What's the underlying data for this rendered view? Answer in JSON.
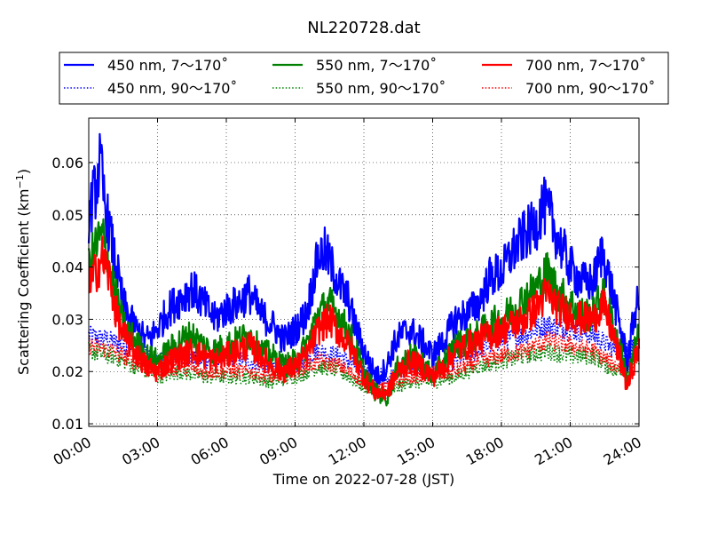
{
  "chart_data": {
    "type": "line",
    "title": "NL220728.dat",
    "xlabel": "Time on 2022-07-28 (JST)",
    "ylabel_main": "Scattering Coefficient (km",
    "ylabel_sup": "−1",
    "ylabel_close": ")",
    "x_unit": "hour",
    "xlim": [
      0,
      24
    ],
    "ylim": [
      0.0095,
      0.0685
    ],
    "xticks": [
      0,
      3,
      6,
      9,
      12,
      15,
      18,
      21,
      24
    ],
    "xtick_labels": [
      "00:00",
      "03:00",
      "06:00",
      "09:00",
      "12:00",
      "15:00",
      "18:00",
      "21:00",
      "24:00"
    ],
    "yticks": [
      0.01,
      0.02,
      0.03,
      0.04,
      0.05,
      0.06
    ],
    "ytick_labels": [
      "0.01",
      "0.02",
      "0.03",
      "0.04",
      "0.05",
      "0.06"
    ],
    "grid": true,
    "legend_position": "top (above plot)",
    "series": [
      {
        "name": "450 nm, 7～170˚",
        "color": "#0000ff",
        "style": "solid",
        "points": [
          [
            0,
            0.05
          ],
          [
            0.3,
            0.055
          ],
          [
            0.5,
            0.06
          ],
          [
            0.7,
            0.052
          ],
          [
            0.9,
            0.047
          ],
          [
            1.2,
            0.04
          ],
          [
            1.5,
            0.033
          ],
          [
            1.8,
            0.03
          ],
          [
            2.1,
            0.028
          ],
          [
            2.5,
            0.026
          ],
          [
            2.8,
            0.027
          ],
          [
            3.1,
            0.029
          ],
          [
            3.5,
            0.032
          ],
          [
            4.0,
            0.034
          ],
          [
            4.5,
            0.036
          ],
          [
            5.0,
            0.033
          ],
          [
            5.5,
            0.03
          ],
          [
            6.0,
            0.032
          ],
          [
            6.5,
            0.033
          ],
          [
            7.0,
            0.035
          ],
          [
            7.5,
            0.031
          ],
          [
            8.0,
            0.029
          ],
          [
            8.5,
            0.026
          ],
          [
            9.0,
            0.028
          ],
          [
            9.5,
            0.031
          ],
          [
            10.0,
            0.042
          ],
          [
            10.3,
            0.043
          ],
          [
            10.7,
            0.039
          ],
          [
            11.0,
            0.036
          ],
          [
            11.3,
            0.034
          ],
          [
            11.6,
            0.029
          ],
          [
            12.0,
            0.024
          ],
          [
            12.3,
            0.021
          ],
          [
            12.6,
            0.019
          ],
          [
            13.0,
            0.021
          ],
          [
            13.3,
            0.025
          ],
          [
            13.6,
            0.027
          ],
          [
            14.0,
            0.028
          ],
          [
            14.5,
            0.026
          ],
          [
            15.0,
            0.023
          ],
          [
            15.5,
            0.026
          ],
          [
            16.0,
            0.03
          ],
          [
            16.5,
            0.031
          ],
          [
            17.0,
            0.033
          ],
          [
            17.5,
            0.038
          ],
          [
            18.0,
            0.039
          ],
          [
            18.5,
            0.043
          ],
          [
            19.0,
            0.046
          ],
          [
            19.5,
            0.048
          ],
          [
            19.8,
            0.052
          ],
          [
            20.2,
            0.049
          ],
          [
            20.5,
            0.045
          ],
          [
            21.0,
            0.04
          ],
          [
            21.5,
            0.037
          ],
          [
            22.0,
            0.037
          ],
          [
            22.4,
            0.043
          ],
          [
            22.8,
            0.036
          ],
          [
            23.2,
            0.028
          ],
          [
            23.5,
            0.022
          ],
          [
            23.8,
            0.031
          ],
          [
            24,
            0.034
          ]
        ]
      },
      {
        "name": "450 nm, 90～170˚",
        "color": "#0000ff",
        "style": "dotted",
        "points": [
          [
            0,
            0.027
          ],
          [
            1,
            0.026
          ],
          [
            2,
            0.024
          ],
          [
            3,
            0.022
          ],
          [
            4,
            0.023
          ],
          [
            5,
            0.022
          ],
          [
            6,
            0.023
          ],
          [
            7,
            0.022
          ],
          [
            8,
            0.021
          ],
          [
            9,
            0.021
          ],
          [
            10,
            0.024
          ],
          [
            11,
            0.023
          ],
          [
            12,
            0.02
          ],
          [
            13,
            0.019
          ],
          [
            14,
            0.021
          ],
          [
            15,
            0.02
          ],
          [
            16,
            0.022
          ],
          [
            17,
            0.024
          ],
          [
            18,
            0.026
          ],
          [
            19,
            0.027
          ],
          [
            20,
            0.029
          ],
          [
            21,
            0.028
          ],
          [
            22,
            0.027
          ],
          [
            23,
            0.024
          ],
          [
            24,
            0.025
          ]
        ]
      },
      {
        "name": "550 nm, 7～170˚",
        "color": "#008000",
        "style": "solid",
        "points": [
          [
            0,
            0.04
          ],
          [
            0.3,
            0.044
          ],
          [
            0.6,
            0.046
          ],
          [
            0.9,
            0.04
          ],
          [
            1.2,
            0.034
          ],
          [
            1.5,
            0.029
          ],
          [
            2,
            0.026
          ],
          [
            2.5,
            0.023
          ],
          [
            3,
            0.022
          ],
          [
            3.5,
            0.024
          ],
          [
            4,
            0.026
          ],
          [
            4.5,
            0.027
          ],
          [
            5,
            0.025
          ],
          [
            5.5,
            0.024
          ],
          [
            6,
            0.025
          ],
          [
            6.5,
            0.026
          ],
          [
            7,
            0.027
          ],
          [
            7.5,
            0.024
          ],
          [
            8,
            0.023
          ],
          [
            8.5,
            0.021
          ],
          [
            9,
            0.022
          ],
          [
            9.5,
            0.025
          ],
          [
            10,
            0.031
          ],
          [
            10.5,
            0.033
          ],
          [
            11,
            0.03
          ],
          [
            11.5,
            0.026
          ],
          [
            12,
            0.02
          ],
          [
            12.5,
            0.016
          ],
          [
            13,
            0.015
          ],
          [
            13.5,
            0.021
          ],
          [
            14,
            0.023
          ],
          [
            14.5,
            0.022
          ],
          [
            15,
            0.019
          ],
          [
            15.5,
            0.022
          ],
          [
            16,
            0.025
          ],
          [
            16.5,
            0.026
          ],
          [
            17,
            0.027
          ],
          [
            17.5,
            0.029
          ],
          [
            18,
            0.03
          ],
          [
            18.5,
            0.032
          ],
          [
            19,
            0.034
          ],
          [
            19.5,
            0.036
          ],
          [
            20,
            0.039
          ],
          [
            20.5,
            0.035
          ],
          [
            21,
            0.033
          ],
          [
            21.5,
            0.031
          ],
          [
            22,
            0.031
          ],
          [
            22.4,
            0.035
          ],
          [
            22.8,
            0.03
          ],
          [
            23.2,
            0.024
          ],
          [
            23.5,
            0.018
          ],
          [
            23.8,
            0.024
          ],
          [
            24,
            0.027
          ]
        ]
      },
      {
        "name": "550 nm, 90～170˚",
        "color": "#008000",
        "style": "dotted",
        "points": [
          [
            0,
            0.024
          ],
          [
            1,
            0.023
          ],
          [
            2,
            0.021
          ],
          [
            3,
            0.019
          ],
          [
            4,
            0.02
          ],
          [
            5,
            0.019
          ],
          [
            6,
            0.019
          ],
          [
            7,
            0.019
          ],
          [
            8,
            0.018
          ],
          [
            9,
            0.019
          ],
          [
            10,
            0.021
          ],
          [
            11,
            0.02
          ],
          [
            12,
            0.017
          ],
          [
            13,
            0.016
          ],
          [
            14,
            0.018
          ],
          [
            15,
            0.018
          ],
          [
            16,
            0.019
          ],
          [
            17,
            0.021
          ],
          [
            18,
            0.022
          ],
          [
            19,
            0.023
          ],
          [
            20,
            0.024
          ],
          [
            21,
            0.023
          ],
          [
            22,
            0.023
          ],
          [
            23,
            0.02
          ],
          [
            24,
            0.022
          ]
        ]
      },
      {
        "name": "700 nm, 7～170˚",
        "color": "#ff0000",
        "style": "solid",
        "points": [
          [
            0,
            0.036
          ],
          [
            0.3,
            0.039
          ],
          [
            0.6,
            0.042
          ],
          [
            0.9,
            0.038
          ],
          [
            1.2,
            0.031
          ],
          [
            1.5,
            0.027
          ],
          [
            2,
            0.024
          ],
          [
            2.5,
            0.021
          ],
          [
            3,
            0.02
          ],
          [
            3.5,
            0.022
          ],
          [
            4,
            0.023
          ],
          [
            4.5,
            0.024
          ],
          [
            5,
            0.023
          ],
          [
            5.5,
            0.022
          ],
          [
            6,
            0.023
          ],
          [
            6.5,
            0.024
          ],
          [
            7,
            0.025
          ],
          [
            7.5,
            0.023
          ],
          [
            8,
            0.021
          ],
          [
            8.5,
            0.02
          ],
          [
            9,
            0.021
          ],
          [
            9.5,
            0.023
          ],
          [
            10,
            0.028
          ],
          [
            10.5,
            0.03
          ],
          [
            11,
            0.027
          ],
          [
            11.5,
            0.024
          ],
          [
            12,
            0.019
          ],
          [
            12.5,
            0.016
          ],
          [
            13,
            0.016
          ],
          [
            13.5,
            0.02
          ],
          [
            14,
            0.022
          ],
          [
            14.5,
            0.021
          ],
          [
            15,
            0.019
          ],
          [
            15.5,
            0.021
          ],
          [
            16,
            0.024
          ],
          [
            16.5,
            0.025
          ],
          [
            17,
            0.026
          ],
          [
            17.5,
            0.027
          ],
          [
            18,
            0.028
          ],
          [
            18.5,
            0.029
          ],
          [
            19,
            0.03
          ],
          [
            19.5,
            0.032
          ],
          [
            20,
            0.035
          ],
          [
            20.5,
            0.032
          ],
          [
            21,
            0.031
          ],
          [
            21.5,
            0.03
          ],
          [
            22,
            0.03
          ],
          [
            22.4,
            0.033
          ],
          [
            22.8,
            0.028
          ],
          [
            23.2,
            0.022
          ],
          [
            23.5,
            0.017
          ],
          [
            23.8,
            0.022
          ],
          [
            24,
            0.025
          ]
        ]
      },
      {
        "name": "700 nm, 90～170˚",
        "color": "#ff0000",
        "style": "dotted",
        "points": [
          [
            0,
            0.025
          ],
          [
            1,
            0.024
          ],
          [
            2,
            0.022
          ],
          [
            3,
            0.02
          ],
          [
            4,
            0.021
          ],
          [
            5,
            0.02
          ],
          [
            6,
            0.02
          ],
          [
            7,
            0.02
          ],
          [
            8,
            0.019
          ],
          [
            9,
            0.02
          ],
          [
            10,
            0.022
          ],
          [
            11,
            0.021
          ],
          [
            12,
            0.018
          ],
          [
            13,
            0.017
          ],
          [
            14,
            0.019
          ],
          [
            15,
            0.019
          ],
          [
            16,
            0.02
          ],
          [
            17,
            0.022
          ],
          [
            18,
            0.023
          ],
          [
            19,
            0.024
          ],
          [
            20,
            0.026
          ],
          [
            21,
            0.025
          ],
          [
            22,
            0.024
          ],
          [
            23,
            0.021
          ],
          [
            24,
            0.023
          ]
        ]
      }
    ]
  }
}
